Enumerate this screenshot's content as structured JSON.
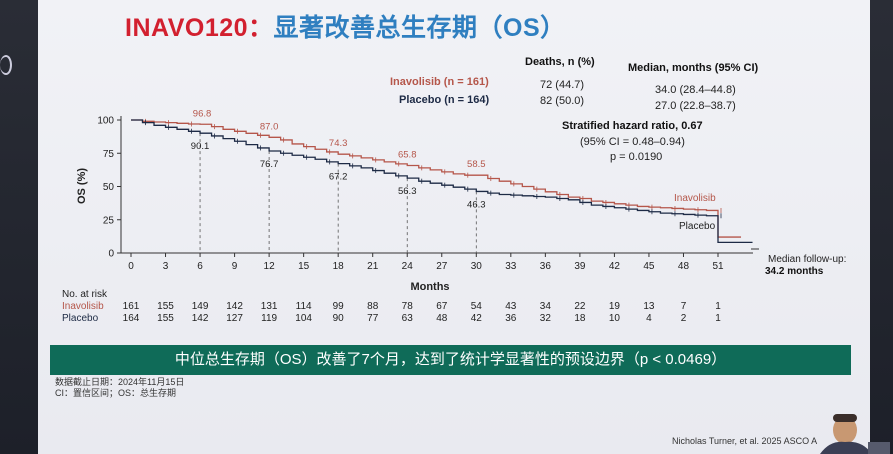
{
  "slide": {
    "title_en": "INAVO120",
    "title_sep": "：",
    "title_zh": "显著改善总生存期（OS）",
    "banner": "中位总生存期（OS）改善了7个月，达到了统计学显著性的预设边界（p < 0.0469）",
    "footnote1": "数据截止日期：2024年11月15日",
    "footnote2": "CI：置信区间；OS：总生存期",
    "citation": "Nicholas Turner, et al. 2025 ASCO A",
    "colors": {
      "inavolisib": "#b5564a",
      "placebo": "#1d2a45",
      "banner": "#0f6b58",
      "title_red": "#d2202f",
      "title_blue": "#2f7fc0"
    }
  },
  "summary_table": {
    "headers": [
      "Deaths, n (%)",
      "Median, months (95% CI)"
    ],
    "rows": [
      {
        "label": "Inavolisib (n = 161)",
        "deaths": "72 (44.7)",
        "median": "34.0 (28.4–44.8)"
      },
      {
        "label": "Placebo (n = 164)",
        "deaths": "82 (50.0)",
        "median": "27.0 (22.8–38.7)"
      }
    ]
  },
  "hazard": {
    "line1": "Stratified hazard ratio, 0.67",
    "line2": "(95% CI = 0.48–0.94)",
    "line3": "p = 0.0190"
  },
  "followup": {
    "line1": "Median follow-up:",
    "line2": "34.2 months"
  },
  "chart_data": {
    "type": "line",
    "ylabel": "OS (%)",
    "xlabel": "Months",
    "xlim": [
      0,
      54
    ],
    "ylim": [
      0,
      100
    ],
    "x_ticks": [
      0,
      3,
      6,
      9,
      12,
      15,
      18,
      21,
      24,
      27,
      30,
      33,
      36,
      39,
      42,
      45,
      48,
      51
    ],
    "y_ticks": [
      0,
      25,
      50,
      75,
      100
    ],
    "series": [
      {
        "name": "Inavolisib",
        "color": "#b5564a",
        "points": [
          [
            0,
            100
          ],
          [
            1,
            99
          ],
          [
            2,
            98.5
          ],
          [
            3,
            98
          ],
          [
            4,
            97.5
          ],
          [
            5,
            97
          ],
          [
            6,
            96.8
          ],
          [
            7,
            95
          ],
          [
            8,
            93
          ],
          [
            9,
            91.5
          ],
          [
            10,
            90
          ],
          [
            11,
            88.5
          ],
          [
            12,
            87
          ],
          [
            13,
            85
          ],
          [
            14,
            82
          ],
          [
            15,
            80
          ],
          [
            16,
            78
          ],
          [
            17,
            76
          ],
          [
            18,
            74.3
          ],
          [
            19,
            73
          ],
          [
            20,
            71.5
          ],
          [
            21,
            70
          ],
          [
            22,
            68.5
          ],
          [
            23,
            67
          ],
          [
            24,
            65.8
          ],
          [
            25,
            64
          ],
          [
            26,
            62.5
          ],
          [
            27,
            61
          ],
          [
            28,
            59.5
          ],
          [
            29,
            58.5
          ],
          [
            30,
            58.5
          ],
          [
            31,
            56
          ],
          [
            32,
            54
          ],
          [
            33,
            52
          ],
          [
            34,
            50
          ],
          [
            35,
            48
          ],
          [
            36,
            46
          ],
          [
            37,
            44
          ],
          [
            38,
            42
          ],
          [
            39,
            41
          ],
          [
            40,
            39
          ],
          [
            41,
            38
          ],
          [
            42,
            37
          ],
          [
            43,
            36
          ],
          [
            44,
            35
          ],
          [
            45,
            34.5
          ],
          [
            46,
            34
          ],
          [
            47,
            33.5
          ],
          [
            48,
            33
          ],
          [
            49,
            32.5
          ],
          [
            50,
            32
          ],
          [
            51,
            32
          ],
          [
            51,
            12
          ],
          [
            53,
            12
          ]
        ]
      },
      {
        "name": "Placebo",
        "color": "#1d2a45",
        "points": [
          [
            0,
            100
          ],
          [
            1,
            98
          ],
          [
            2,
            96
          ],
          [
            3,
            94.5
          ],
          [
            4,
            93
          ],
          [
            5,
            91.5
          ],
          [
            6,
            90.1
          ],
          [
            7,
            88
          ],
          [
            8,
            86
          ],
          [
            9,
            84
          ],
          [
            10,
            81.5
          ],
          [
            11,
            79
          ],
          [
            12,
            76.7
          ],
          [
            13,
            75
          ],
          [
            14,
            73.5
          ],
          [
            15,
            72
          ],
          [
            16,
            70.5
          ],
          [
            17,
            68.5
          ],
          [
            18,
            67.2
          ],
          [
            19,
            65.5
          ],
          [
            20,
            64
          ],
          [
            21,
            62
          ],
          [
            22,
            60
          ],
          [
            23,
            58
          ],
          [
            24,
            56.3
          ],
          [
            25,
            54
          ],
          [
            26,
            52.5
          ],
          [
            27,
            51
          ],
          [
            28,
            49.5
          ],
          [
            29,
            48
          ],
          [
            30,
            46.3
          ],
          [
            31,
            45
          ],
          [
            32,
            44
          ],
          [
            33,
            43.5
          ],
          [
            34,
            43
          ],
          [
            35,
            42.5
          ],
          [
            36,
            42
          ],
          [
            37,
            41
          ],
          [
            38,
            40
          ],
          [
            39,
            38
          ],
          [
            40,
            36
          ],
          [
            41,
            35
          ],
          [
            42,
            34
          ],
          [
            43,
            33
          ],
          [
            44,
            32
          ],
          [
            45,
            31
          ],
          [
            46,
            30
          ],
          [
            47,
            29.5
          ],
          [
            48,
            29
          ],
          [
            49,
            28.5
          ],
          [
            50,
            28
          ],
          [
            51,
            28
          ],
          [
            51,
            8
          ],
          [
            54,
            8
          ]
        ]
      }
    ],
    "annotations": [
      {
        "x": 6,
        "inavolisib": "96.8",
        "placebo": "90.1"
      },
      {
        "x": 12,
        "inavolisib": "87.0",
        "placebo": "76.7"
      },
      {
        "x": 18,
        "inavolisib": "74.3",
        "placebo": "67.2"
      },
      {
        "x": 24,
        "inavolisib": "65.8",
        "placebo": "56.3"
      },
      {
        "x": 30,
        "inavolisib": "58.5",
        "placebo": "46.3"
      }
    ]
  },
  "at_risk": {
    "title": "No. at risk",
    "rows": [
      {
        "label": "Inavolisib",
        "values": [
          "161",
          "155",
          "149",
          "142",
          "131",
          "114",
          "99",
          "88",
          "78",
          "67",
          "54",
          "43",
          "34",
          "22",
          "19",
          "13",
          "7",
          "1"
        ]
      },
      {
        "label": "Placebo",
        "values": [
          "164",
          "155",
          "142",
          "127",
          "119",
          "104",
          "90",
          "77",
          "63",
          "48",
          "42",
          "36",
          "32",
          "18",
          "10",
          "4",
          "2",
          "1"
        ]
      }
    ]
  }
}
